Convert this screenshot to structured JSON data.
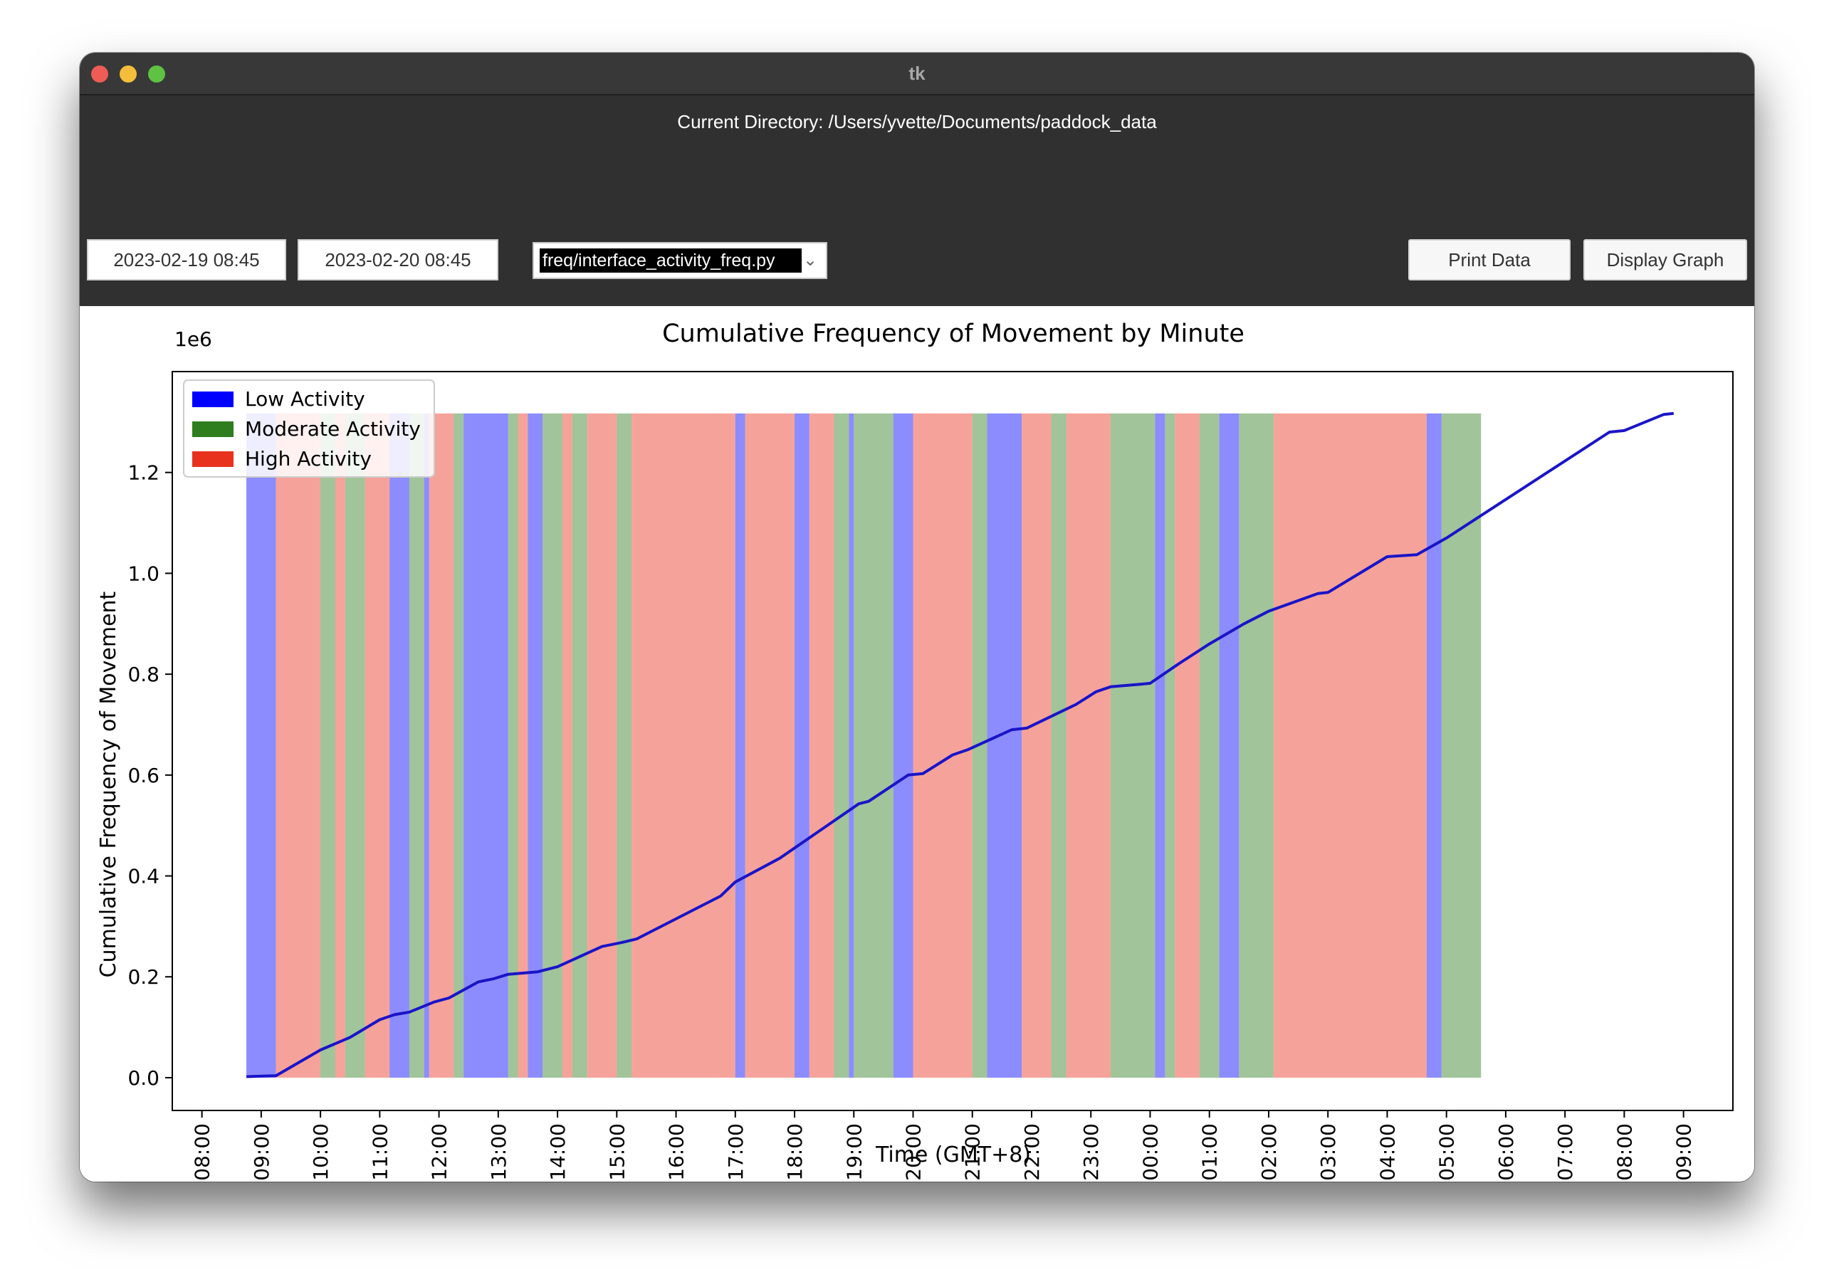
{
  "window": {
    "title": "tk"
  },
  "toolbar": {
    "current_directory": "Current Directory: /Users/yvette/Documents/paddock_data",
    "start_time": "2023-02-19 08:45",
    "end_time": "2023-02-20 08:45",
    "script_select": "freq/interface_activity_freq.py",
    "print_button": "Print Data",
    "display_button": "Display Graph"
  },
  "colors": {
    "low": "#0000ff",
    "moderate": "#2e7d1e",
    "high": "#e8321e",
    "line": "#1a14c8"
  },
  "chart_data": {
    "type": "line",
    "title": "Cumulative Frequency of Movement by Minute",
    "xlabel": "Time (GMT+8)",
    "ylabel": "Cumulative Frequency of Movement",
    "y_offset_label": "1e6",
    "ylim": [
      -0.065,
      1.4
    ],
    "xlim": [
      "2023-02-19 07:30",
      "2023-02-20 09:50"
    ],
    "x_ticks": [
      "08:00",
      "09:00",
      "10:00",
      "11:00",
      "12:00",
      "13:00",
      "14:00",
      "15:00",
      "16:00",
      "17:00",
      "18:00",
      "19:00",
      "20:00",
      "21:00",
      "22:00",
      "23:00",
      "00:00",
      "01:00",
      "02:00",
      "03:00",
      "04:00",
      "05:00",
      "06:00",
      "07:00",
      "08:00",
      "09:00"
    ],
    "y_ticks": [
      "0.0",
      "0.2",
      "0.4",
      "0.6",
      "0.8",
      "1.0",
      "1.2"
    ],
    "legend": {
      "position": "top-left",
      "entries": [
        "Low Activity",
        "Moderate Activity",
        "High Activity"
      ]
    },
    "series": [
      {
        "x": [
          "2023-02-19 08:45",
          "2023-02-19 09:15",
          "2023-02-19 10:00",
          "2023-02-19 10:30",
          "2023-02-19 11:00",
          "2023-02-19 11:15",
          "2023-02-19 11:30",
          "2023-02-19 11:55",
          "2023-02-19 12:10",
          "2023-02-19 12:40",
          "2023-02-19 12:55",
          "2023-02-19 13:10",
          "2023-02-19 13:40",
          "2023-02-19 14:00",
          "2023-02-19 14:45",
          "2023-02-19 15:05",
          "2023-02-19 15:20",
          "2023-02-19 16:30",
          "2023-02-19 16:45",
          "2023-02-19 17:00",
          "2023-02-19 17:45",
          "2023-02-19 19:05",
          "2023-02-19 19:15",
          "2023-02-19 19:55",
          "2023-02-19 20:10",
          "2023-02-19 20:40",
          "2023-02-19 20:55",
          "2023-02-19 21:40",
          "2023-02-19 21:55",
          "2023-02-19 22:45",
          "2023-02-19 23:05",
          "2023-02-19 23:20",
          "2023-02-19 23:50",
          "2023-02-20 00:00",
          "2023-02-20 00:30",
          "2023-02-20 01:00",
          "2023-02-20 01:35",
          "2023-02-20 02:00",
          "2023-02-20 02:50",
          "2023-02-20 03:00",
          "2023-02-20 04:00",
          "2023-02-20 04:30",
          "2023-02-20 05:00",
          "2023-02-20 07:45",
          "2023-02-20 08:00",
          "2023-02-20 08:40",
          "2023-02-20 08:50"
        ],
        "values": [
          0.002,
          0.004,
          0.055,
          0.08,
          0.115,
          0.125,
          0.13,
          0.15,
          0.158,
          0.19,
          0.196,
          0.205,
          0.21,
          0.22,
          0.26,
          0.268,
          0.275,
          0.345,
          0.36,
          0.388,
          0.435,
          0.543,
          0.548,
          0.6,
          0.603,
          0.64,
          0.65,
          0.69,
          0.693,
          0.74,
          0.765,
          0.775,
          0.78,
          0.782,
          0.822,
          0.86,
          0.9,
          0.925,
          0.96,
          0.962,
          1.033,
          1.037,
          1.07,
          1.28,
          1.283,
          1.315,
          1.317
        ]
      }
    ],
    "activity_bands": {
      "start": "2023-02-19 08:45",
      "end": "2023-02-20 08:50",
      "segments": [
        [
          "low",
          30
        ],
        [
          "high",
          45
        ],
        [
          "moderate",
          15
        ],
        [
          "high",
          10
        ],
        [
          "moderate",
          20
        ],
        [
          "high",
          25
        ],
        [
          "low",
          20
        ],
        [
          "moderate",
          15
        ],
        [
          "low",
          5
        ],
        [
          "high",
          25
        ],
        [
          "moderate",
          10
        ],
        [
          "low",
          45
        ],
        [
          "moderate",
          10
        ],
        [
          "high",
          10
        ],
        [
          "low",
          15
        ],
        [
          "moderate",
          20
        ],
        [
          "high",
          10
        ],
        [
          "moderate",
          15
        ],
        [
          "high",
          30
        ],
        [
          "moderate",
          15
        ],
        [
          "high",
          105
        ],
        [
          "low",
          10
        ],
        [
          "high",
          50
        ],
        [
          "low",
          15
        ],
        [
          "high",
          25
        ],
        [
          "moderate",
          15
        ],
        [
          "low",
          5
        ],
        [
          "moderate",
          40
        ],
        [
          "low",
          20
        ],
        [
          "high",
          60
        ],
        [
          "moderate",
          15
        ],
        [
          "low",
          35
        ],
        [
          "high",
          30
        ],
        [
          "moderate",
          15
        ],
        [
          "high",
          45
        ],
        [
          "moderate",
          45
        ],
        [
          "low",
          10
        ],
        [
          "moderate",
          10
        ],
        [
          "high",
          25
        ],
        [
          "moderate",
          20
        ],
        [
          "low",
          20
        ],
        [
          "moderate",
          35
        ],
        [
          "high",
          155
        ],
        [
          "low",
          15
        ],
        [
          "moderate",
          40
        ]
      ]
    }
  }
}
